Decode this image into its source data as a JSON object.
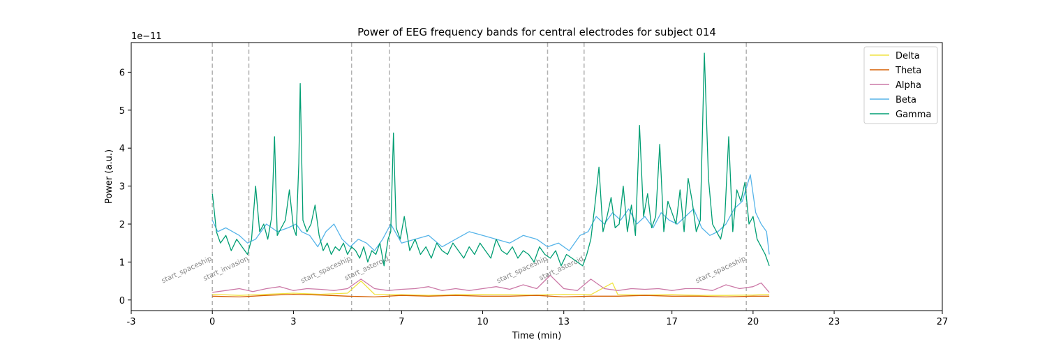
{
  "chart_data": {
    "type": "line",
    "title": "Power of EEG frequency bands for central electrodes for subject 014",
    "xlabel": "Time (min)",
    "ylabel": "Power (a.u.)",
    "offset_text": "1e−11",
    "xlim": [
      -3,
      27
    ],
    "ylim": [
      -0.28,
      6.78
    ],
    "xticks": [
      -3,
      0,
      3,
      7,
      10,
      13,
      17,
      20,
      23,
      27
    ],
    "yticks": [
      0,
      1,
      2,
      3,
      4,
      5,
      6
    ],
    "grid": false,
    "legend_position": "top-right",
    "events": [
      {
        "x": 0.0,
        "label": "start_spaceship"
      },
      {
        "x": 1.35,
        "label": "start_invasion"
      },
      {
        "x": 5.15,
        "label": "start_spaceship"
      },
      {
        "x": 6.55,
        "label": "start_asteroid"
      },
      {
        "x": 12.4,
        "label": "start_spaceship"
      },
      {
        "x": 13.75,
        "label": "start_asteroid"
      },
      {
        "x": 19.75,
        "label": "start_spaceship"
      }
    ],
    "series": [
      {
        "name": "Delta",
        "color": "#f0e442",
        "x": [
          0,
          1,
          2,
          3,
          4,
          5,
          5.5,
          6,
          7,
          8,
          9,
          10,
          11,
          12,
          13,
          14,
          14.8,
          15,
          16,
          17,
          18,
          19,
          20,
          20.6
        ],
        "y": [
          0.15,
          0.12,
          0.15,
          0.18,
          0.15,
          0.18,
          0.5,
          0.15,
          0.14,
          0.12,
          0.14,
          0.15,
          0.14,
          0.13,
          0.15,
          0.14,
          0.45,
          0.14,
          0.13,
          0.14,
          0.12,
          0.12,
          0.13,
          0.15
        ]
      },
      {
        "name": "Theta",
        "color": "#d55e00",
        "x": [
          0,
          1,
          2,
          3,
          4,
          5,
          6,
          7,
          8,
          9,
          10,
          11,
          12,
          13,
          14,
          15,
          16,
          17,
          18,
          19,
          20,
          20.6
        ],
        "y": [
          0.1,
          0.08,
          0.12,
          0.15,
          0.13,
          0.1,
          0.08,
          0.12,
          0.1,
          0.12,
          0.1,
          0.1,
          0.12,
          0.08,
          0.1,
          0.1,
          0.12,
          0.1,
          0.1,
          0.08,
          0.1,
          0.1
        ]
      },
      {
        "name": "Alpha",
        "color": "#cc79a7",
        "x": [
          0,
          0.5,
          1,
          1.5,
          2,
          2.5,
          3,
          3.5,
          4,
          4.5,
          5,
          5.5,
          6,
          6.5,
          7,
          7.5,
          8,
          8.5,
          9,
          9.5,
          10,
          10.5,
          11,
          11.5,
          12,
          12.5,
          13,
          13.5,
          14,
          14.5,
          15,
          15.5,
          16,
          16.5,
          17,
          17.5,
          18,
          18.5,
          19,
          19.5,
          20,
          20.3,
          20.6
        ],
        "y": [
          0.2,
          0.25,
          0.3,
          0.22,
          0.3,
          0.35,
          0.25,
          0.3,
          0.28,
          0.25,
          0.3,
          0.55,
          0.3,
          0.25,
          0.28,
          0.3,
          0.35,
          0.25,
          0.3,
          0.25,
          0.3,
          0.35,
          0.28,
          0.4,
          0.3,
          0.65,
          0.3,
          0.25,
          0.55,
          0.3,
          0.25,
          0.3,
          0.28,
          0.3,
          0.25,
          0.3,
          0.3,
          0.25,
          0.4,
          0.3,
          0.35,
          0.45,
          0.2
        ]
      },
      {
        "name": "Beta",
        "color": "#56b4e9",
        "x": [
          0,
          0.2,
          0.5,
          1,
          1.3,
          1.6,
          2,
          2.4,
          2.8,
          3.1,
          3.3,
          3.6,
          3.9,
          4.2,
          4.5,
          4.8,
          5.1,
          5.4,
          5.7,
          6,
          6.3,
          6.6,
          7,
          7.5,
          8,
          8.5,
          9,
          9.5,
          10,
          10.5,
          11,
          11.5,
          12,
          12.4,
          12.8,
          13.2,
          13.6,
          13.9,
          14.2,
          14.5,
          14.8,
          15.1,
          15.4,
          15.7,
          16,
          16.3,
          16.6,
          16.9,
          17.2,
          17.5,
          17.8,
          18.1,
          18.4,
          18.7,
          19,
          19.3,
          19.6,
          19.9,
          20.1,
          20.3,
          20.5,
          20.6
        ],
        "y": [
          2.1,
          1.8,
          1.9,
          1.7,
          1.5,
          1.6,
          2.0,
          1.8,
          1.9,
          2.0,
          1.8,
          1.7,
          1.4,
          1.8,
          2.0,
          1.6,
          1.4,
          1.6,
          1.5,
          1.3,
          1.6,
          2.0,
          1.5,
          1.6,
          1.7,
          1.4,
          1.6,
          1.8,
          1.7,
          1.6,
          1.5,
          1.7,
          1.6,
          1.4,
          1.5,
          1.3,
          1.7,
          1.8,
          2.2,
          2.0,
          2.3,
          2.1,
          2.4,
          2.0,
          2.2,
          1.9,
          2.3,
          2.1,
          2.0,
          2.2,
          2.4,
          1.9,
          1.7,
          1.8,
          2.0,
          2.4,
          2.6,
          3.3,
          2.3,
          2.0,
          1.8,
          1.2
        ]
      },
      {
        "name": "Gamma",
        "color": "#009e73",
        "x": [
          0,
          0.05,
          0.15,
          0.3,
          0.5,
          0.7,
          0.9,
          1.1,
          1.3,
          1.45,
          1.6,
          1.75,
          1.9,
          2.05,
          2.2,
          2.3,
          2.4,
          2.55,
          2.7,
          2.85,
          3.0,
          3.1,
          3.2,
          3.25,
          3.35,
          3.5,
          3.65,
          3.8,
          3.95,
          4.1,
          4.25,
          4.4,
          4.55,
          4.7,
          4.85,
          5.0,
          5.15,
          5.3,
          5.45,
          5.6,
          5.75,
          5.9,
          6.05,
          6.2,
          6.35,
          6.5,
          6.6,
          6.7,
          6.8,
          6.95,
          7.1,
          7.3,
          7.5,
          7.7,
          7.9,
          8.1,
          8.3,
          8.5,
          8.7,
          8.9,
          9.1,
          9.3,
          9.5,
          9.7,
          9.9,
          10.1,
          10.3,
          10.5,
          10.7,
          10.9,
          11.1,
          11.3,
          11.5,
          11.7,
          11.9,
          12.1,
          12.3,
          12.5,
          12.7,
          12.9,
          13.1,
          13.3,
          13.5,
          13.7,
          13.85,
          14.0,
          14.15,
          14.3,
          14.45,
          14.6,
          14.75,
          14.9,
          15.05,
          15.2,
          15.35,
          15.5,
          15.65,
          15.8,
          15.95,
          16.1,
          16.25,
          16.4,
          16.55,
          16.7,
          16.85,
          17.0,
          17.15,
          17.3,
          17.45,
          17.6,
          17.75,
          17.9,
          18.05,
          18.2,
          18.35,
          18.5,
          18.65,
          18.8,
          18.95,
          19.1,
          19.25,
          19.4,
          19.55,
          19.7,
          19.85,
          20.0,
          20.15,
          20.3,
          20.45,
          20.6
        ],
        "y": [
          2.8,
          2.5,
          1.8,
          1.5,
          1.7,
          1.3,
          1.6,
          1.4,
          1.2,
          1.6,
          3.0,
          1.8,
          2.0,
          1.6,
          2.2,
          4.3,
          1.7,
          1.9,
          2.1,
          2.9,
          1.9,
          1.7,
          3.6,
          5.7,
          2.1,
          1.8,
          2.0,
          2.5,
          1.7,
          1.3,
          1.5,
          1.2,
          1.4,
          1.3,
          1.5,
          1.2,
          1.4,
          1.3,
          1.1,
          1.4,
          1.0,
          1.3,
          1.2,
          1.5,
          0.9,
          1.6,
          1.8,
          4.4,
          1.9,
          1.6,
          2.2,
          1.3,
          1.6,
          1.2,
          1.4,
          1.1,
          1.5,
          1.3,
          1.2,
          1.5,
          1.3,
          1.1,
          1.4,
          1.2,
          1.5,
          1.3,
          1.1,
          1.6,
          1.3,
          1.2,
          1.4,
          1.1,
          1.3,
          1.2,
          1.0,
          1.4,
          1.2,
          1.1,
          1.3,
          0.9,
          1.2,
          1.1,
          1.0,
          0.9,
          1.2,
          1.6,
          2.5,
          3.5,
          1.8,
          2.2,
          2.7,
          1.9,
          2.0,
          3.0,
          1.8,
          2.5,
          1.7,
          4.6,
          2.2,
          2.8,
          1.9,
          2.2,
          4.1,
          1.8,
          2.6,
          2.3,
          2.0,
          2.9,
          1.8,
          3.2,
          2.6,
          1.8,
          2.1,
          6.5,
          3.2,
          2.0,
          1.8,
          1.6,
          2.1,
          4.3,
          1.8,
          2.9,
          2.6,
          3.1,
          2.0,
          2.2,
          1.6,
          1.4,
          1.2,
          0.9
        ]
      }
    ]
  }
}
